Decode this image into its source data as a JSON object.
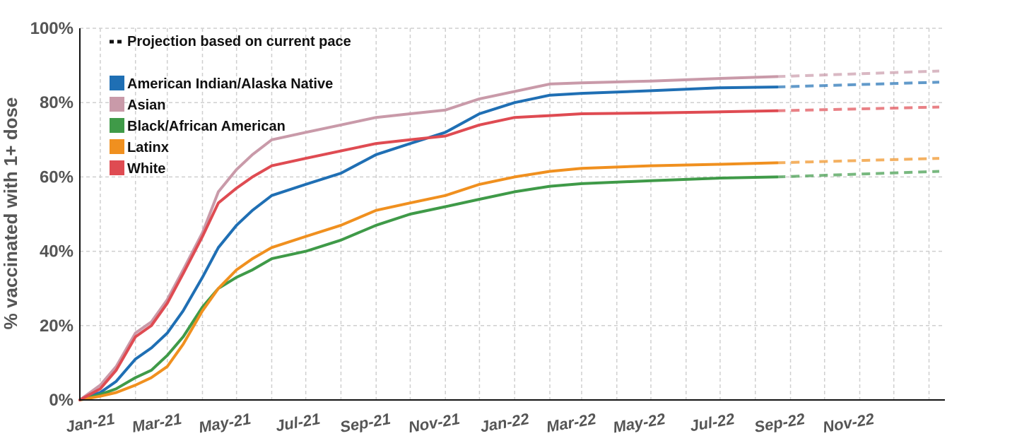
{
  "chart_data": {
    "type": "line",
    "ylabel": "% vaccinated with 1+ dose",
    "xlabel": "",
    "ylim": [
      0,
      100
    ],
    "yticks": [
      0,
      20,
      40,
      60,
      80,
      100
    ],
    "ytick_labels": [
      "0%",
      "20%",
      "40%",
      "60%",
      "80%",
      "100%"
    ],
    "xlim": [
      "2020-12-14",
      "2023-01-15"
    ],
    "xticks": [
      "2021-01-01",
      "2021-03-01",
      "2021-05-01",
      "2021-07-01",
      "2021-09-01",
      "2021-11-01",
      "2022-01-01",
      "2022-03-01",
      "2022-05-01",
      "2022-07-01",
      "2022-09-01",
      "2022-11-01"
    ],
    "xtick_labels": [
      "Jan-21",
      "Mar-21",
      "May-21",
      "Jul-21",
      "Sep-21",
      "Nov-21",
      "Jan-22",
      "Mar-22",
      "May-22",
      "Jul-22",
      "Sep-22",
      "Nov-22"
    ],
    "grid": true,
    "legend": {
      "placement": "top-left",
      "projection_label": "Projection based on current pace"
    },
    "series": [
      {
        "name": "American Indian/Alaska Native",
        "color": "#1f6fb4",
        "x": [
          "2020-12-14",
          "2021-01-01",
          "2021-01-15",
          "2021-02-01",
          "2021-02-15",
          "2021-03-01",
          "2021-03-15",
          "2021-04-01",
          "2021-04-15",
          "2021-05-01",
          "2021-05-15",
          "2021-06-01",
          "2021-07-01",
          "2021-08-01",
          "2021-09-01",
          "2021-10-01",
          "2021-11-01",
          "2021-12-01",
          "2022-01-01",
          "2022-02-01",
          "2022-03-01",
          "2022-05-01",
          "2022-07-01",
          "2022-08-20"
        ],
        "values": [
          0,
          2,
          5,
          11,
          14,
          18,
          24,
          33,
          41,
          47,
          51,
          55,
          58,
          61,
          66,
          69,
          72,
          77,
          80,
          82,
          82.5,
          83.2,
          84,
          84.2
        ],
        "projection": {
          "x": [
            "2022-08-20",
            "2023-01-10"
          ],
          "values": [
            84.2,
            85.5
          ]
        }
      },
      {
        "name": "Asian",
        "color": "#c99aa9",
        "x": [
          "2020-12-14",
          "2021-01-01",
          "2021-01-15",
          "2021-02-01",
          "2021-02-15",
          "2021-03-01",
          "2021-03-15",
          "2021-04-01",
          "2021-04-15",
          "2021-05-01",
          "2021-05-15",
          "2021-06-01",
          "2021-07-01",
          "2021-08-01",
          "2021-09-01",
          "2021-10-01",
          "2021-11-01",
          "2021-12-01",
          "2022-01-01",
          "2022-02-01",
          "2022-03-01",
          "2022-05-01",
          "2022-07-01",
          "2022-08-20"
        ],
        "values": [
          0,
          4,
          9,
          18,
          21,
          27,
          35,
          45,
          56,
          62,
          66,
          70,
          72,
          74,
          76,
          77,
          78,
          81,
          83,
          85,
          85.3,
          85.8,
          86.5,
          87
        ],
        "projection": {
          "x": [
            "2022-08-20",
            "2023-01-10"
          ],
          "values": [
            87,
            88.5
          ]
        }
      },
      {
        "name": "Black/African American",
        "color": "#3f9a48",
        "x": [
          "2020-12-14",
          "2021-01-01",
          "2021-01-15",
          "2021-02-01",
          "2021-02-15",
          "2021-03-01",
          "2021-03-15",
          "2021-04-01",
          "2021-04-15",
          "2021-05-01",
          "2021-05-15",
          "2021-06-01",
          "2021-07-01",
          "2021-08-01",
          "2021-09-01",
          "2021-10-01",
          "2021-11-01",
          "2021-12-01",
          "2022-01-01",
          "2022-02-01",
          "2022-03-01",
          "2022-05-01",
          "2022-07-01",
          "2022-08-20"
        ],
        "values": [
          0,
          1.5,
          3,
          6,
          8,
          12,
          17,
          25,
          30,
          33,
          35,
          38,
          40,
          43,
          47,
          50,
          52,
          54,
          56,
          57.5,
          58.2,
          59,
          59.7,
          60
        ],
        "projection": {
          "x": [
            "2022-08-20",
            "2023-01-10"
          ],
          "values": [
            60,
            61.5
          ]
        }
      },
      {
        "name": "Latinx",
        "color": "#f0901f",
        "x": [
          "2020-12-14",
          "2021-01-01",
          "2021-01-15",
          "2021-02-01",
          "2021-02-15",
          "2021-03-01",
          "2021-03-15",
          "2021-04-01",
          "2021-04-15",
          "2021-05-01",
          "2021-05-15",
          "2021-06-01",
          "2021-07-01",
          "2021-08-01",
          "2021-09-01",
          "2021-10-01",
          "2021-11-01",
          "2021-12-01",
          "2022-01-01",
          "2022-02-01",
          "2022-03-01",
          "2022-05-01",
          "2022-07-01",
          "2022-08-20"
        ],
        "values": [
          0,
          1,
          2,
          4,
          6,
          9,
          15,
          24,
          30,
          35,
          38,
          41,
          44,
          47,
          51,
          53,
          55,
          58,
          60,
          61.5,
          62.3,
          63,
          63.4,
          63.8
        ],
        "projection": {
          "x": [
            "2022-08-20",
            "2023-01-10"
          ],
          "values": [
            63.8,
            65
          ]
        }
      },
      {
        "name": "White",
        "color": "#df4b52",
        "x": [
          "2020-12-14",
          "2021-01-01",
          "2021-01-15",
          "2021-02-01",
          "2021-02-15",
          "2021-03-01",
          "2021-03-15",
          "2021-04-01",
          "2021-04-15",
          "2021-05-01",
          "2021-05-15",
          "2021-06-01",
          "2021-07-01",
          "2021-08-01",
          "2021-09-01",
          "2021-10-01",
          "2021-11-01",
          "2021-12-01",
          "2022-01-01",
          "2022-02-01",
          "2022-03-01",
          "2022-05-01",
          "2022-07-01",
          "2022-08-20"
        ],
        "values": [
          0,
          3,
          8,
          17,
          20,
          26,
          34,
          44,
          53,
          57,
          60,
          63,
          65,
          67,
          69,
          70,
          71,
          74,
          76,
          76.5,
          77,
          77.2,
          77.5,
          77.8
        ],
        "projection": {
          "x": [
            "2022-08-20",
            "2023-01-10"
          ],
          "values": [
            77.8,
            78.8
          ]
        }
      }
    ]
  }
}
